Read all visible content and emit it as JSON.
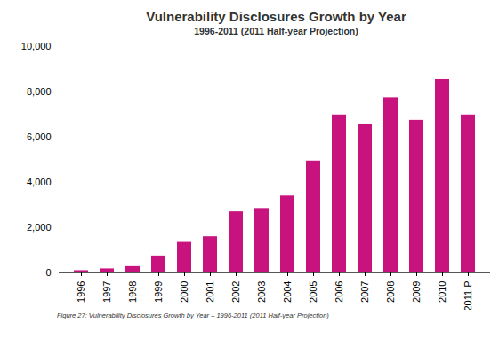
{
  "chart_data": {
    "type": "bar",
    "title": "Vulnerability Disclosures Growth by Year",
    "subtitle": "1996-2011 (2011 Half-year Projection)",
    "caption": "Figure 27: Vulnerability Disclosures Growth by Year – 1996-2011 (2011 Half-year Projection)",
    "categories": [
      "1996",
      "1997",
      "1998",
      "1999",
      "2000",
      "2001",
      "2002",
      "2003",
      "2004",
      "2005",
      "2006",
      "2007",
      "2008",
      "2009",
      "2010",
      "2011 P"
    ],
    "values": [
      100,
      180,
      280,
      750,
      1350,
      1600,
      2700,
      2850,
      3400,
      4950,
      6950,
      6550,
      7750,
      6750,
      8550,
      6950
    ],
    "color": "#c8127e",
    "ylim": [
      0,
      10000
    ],
    "yticks": [
      0,
      {
        "value": 2000,
        "label": "2,000"
      },
      {
        "value": 4000,
        "label": "4,000"
      },
      {
        "value": 6000,
        "label": "6,000"
      },
      {
        "value": 8000,
        "label": "8,000"
      },
      {
        "value": 10000,
        "label": "10,000"
      }
    ],
    "grid": false
  }
}
